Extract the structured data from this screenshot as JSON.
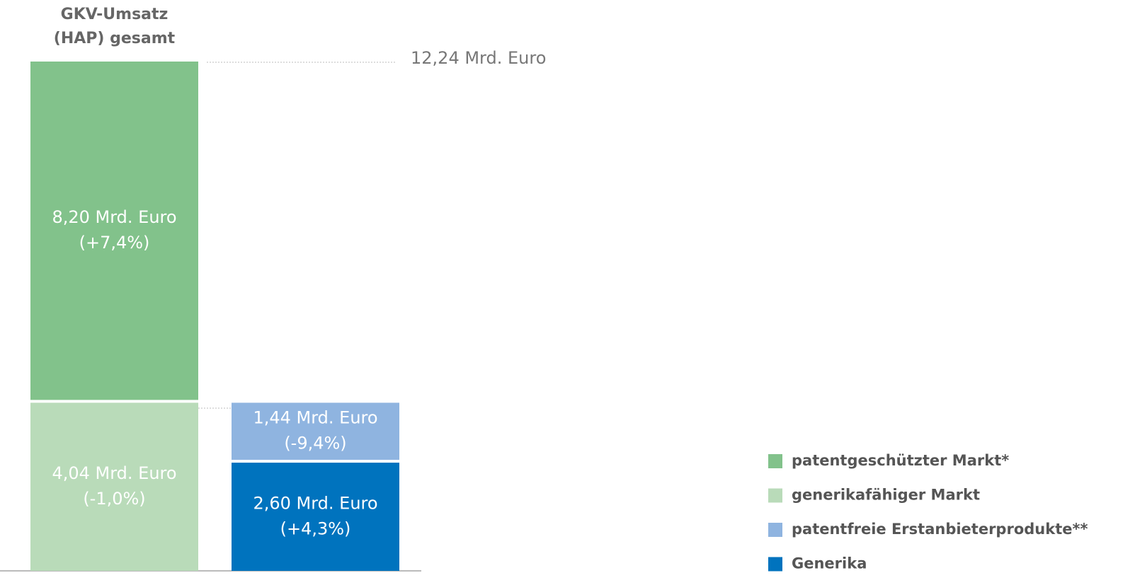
{
  "chart_data": {
    "type": "stacked_bar",
    "categories": [
      "GKV-Umsatz (HAP) gesamt",
      null
    ],
    "series": [
      {
        "name": "patentgeschützter Markt*",
        "color": "#82c28b",
        "values": [
          8.2,
          null
        ],
        "value_labels": [
          "8,20 Mrd. Euro",
          null
        ],
        "change_labels": [
          "(+7,4%)",
          null
        ]
      },
      {
        "name": "generikafähiger Markt",
        "color": "#b9dbb9",
        "values": [
          4.04,
          null
        ],
        "value_labels": [
          "4,04 Mrd. Euro",
          null
        ],
        "change_labels": [
          "(-1,0%)",
          null
        ]
      },
      {
        "name": "patentfreie Erstanbieterprodukte**",
        "color": "#8fb4e0",
        "values": [
          null,
          1.44
        ],
        "value_labels": [
          null,
          "1,44 Mrd. Euro"
        ],
        "change_labels": [
          null,
          "(-9,4%)"
        ]
      },
      {
        "name": "Generika",
        "color": "#0073be",
        "values": [
          null,
          2.6
        ],
        "value_labels": [
          null,
          "2,60 Mrd. Euro"
        ],
        "change_labels": [
          null,
          "(+4,3%)"
        ]
      }
    ],
    "total": 12.24,
    "total_label": "12,24 Mrd. Euro",
    "ylim": [
      0,
      12.24
    ],
    "legend": "lower right"
  }
}
